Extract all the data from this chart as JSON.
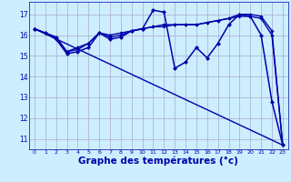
{
  "background_color": "#cceeff",
  "grid_color": "#aaaacc",
  "line_color": "#0000aa",
  "xlabel": "Graphe des températures (°c)",
  "xlabel_fontsize": 7.5,
  "ylim": [
    10.5,
    17.6
  ],
  "xlim": [
    -0.5,
    23.5
  ],
  "yticks": [
    11,
    12,
    13,
    14,
    15,
    16,
    17
  ],
  "xticks": [
    0,
    1,
    2,
    3,
    4,
    5,
    6,
    7,
    8,
    9,
    10,
    11,
    12,
    13,
    14,
    15,
    16,
    17,
    18,
    19,
    20,
    21,
    22,
    23
  ],
  "series": [
    {
      "x": [
        0,
        1,
        2,
        3,
        4,
        5,
        6,
        7,
        8,
        9,
        10,
        11,
        12,
        13,
        14,
        15,
        16,
        17,
        18,
        19,
        20,
        21,
        22,
        23
      ],
      "y": [
        16.3,
        16.1,
        15.8,
        15.1,
        15.2,
        15.4,
        16.1,
        15.8,
        15.9,
        16.2,
        16.3,
        17.2,
        17.1,
        14.4,
        14.7,
        15.4,
        14.9,
        15.6,
        16.5,
        17.0,
        16.9,
        16.0,
        12.8,
        10.7
      ],
      "marker": "D",
      "markersize": 2.2,
      "linewidth": 1.1
    },
    {
      "x": [
        0,
        1,
        2,
        3,
        4,
        5,
        6,
        7,
        8,
        9,
        10,
        11,
        12,
        13,
        14,
        15,
        16,
        17,
        18,
        19,
        20,
        21,
        22,
        23
      ],
      "y": [
        16.3,
        16.1,
        15.9,
        15.2,
        15.4,
        15.6,
        16.1,
        16.0,
        16.1,
        16.2,
        16.3,
        16.4,
        16.5,
        16.5,
        16.5,
        16.5,
        16.6,
        16.7,
        16.8,
        17.0,
        17.0,
        16.9,
        16.2,
        10.7
      ],
      "marker": "D",
      "markersize": 1.8,
      "linewidth": 1.0
    },
    {
      "x": [
        0,
        23
      ],
      "y": [
        16.3,
        10.7
      ],
      "marker": null,
      "markersize": 0,
      "linewidth": 1.0
    },
    {
      "x": [
        0,
        1,
        2,
        3,
        4,
        5,
        6,
        7,
        8,
        9,
        10,
        11,
        12,
        13,
        14,
        15,
        16,
        17,
        18,
        19,
        20,
        21,
        22,
        23
      ],
      "y": [
        16.3,
        16.1,
        15.9,
        15.2,
        15.3,
        15.6,
        16.1,
        15.9,
        16.0,
        16.2,
        16.3,
        16.4,
        16.4,
        16.5,
        16.5,
        16.5,
        16.6,
        16.7,
        16.8,
        16.9,
        16.9,
        16.8,
        16.0,
        10.7
      ],
      "marker": "D",
      "markersize": 1.8,
      "linewidth": 1.0
    }
  ]
}
